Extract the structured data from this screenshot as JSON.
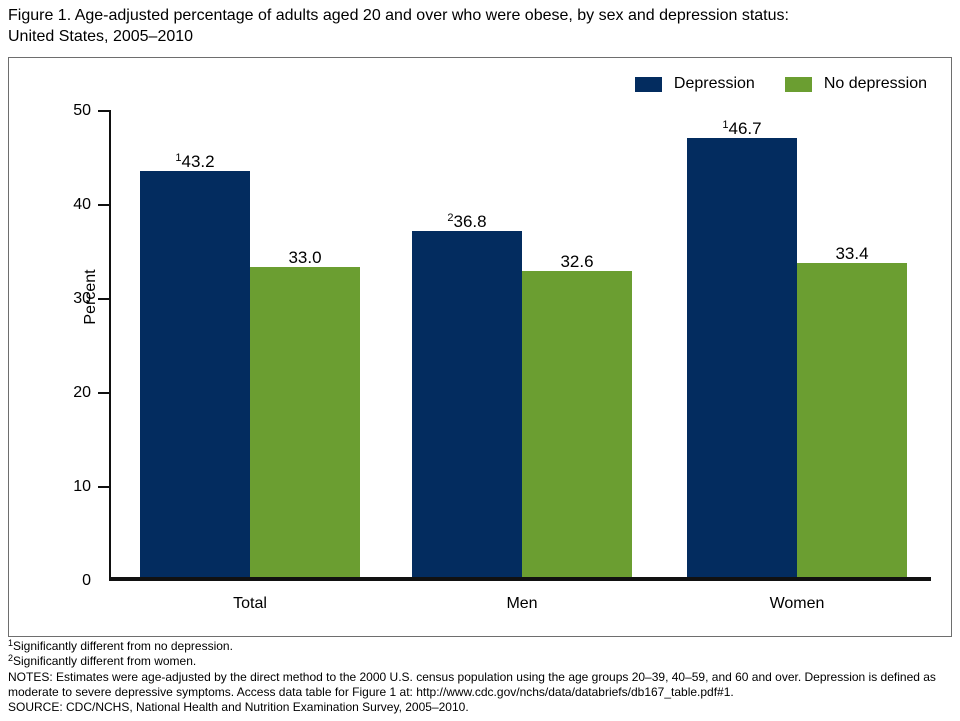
{
  "figure": {
    "title_line1": "Figure 1. Age-adjusted percentage of adults aged 20 and over who were obese, by sex and depression status:",
    "title_line2": "United States, 2005–2010"
  },
  "chart_data": {
    "type": "bar",
    "title": "Age-adjusted percentage of adults aged 20 and over who were obese, by sex and depression status: United States, 2005–2010",
    "categories": [
      "Total",
      "Men",
      "Women"
    ],
    "series": [
      {
        "name": "Depression",
        "color": "#032c5f",
        "points": [
          {
            "value": 43.2,
            "label": "43.2",
            "sup": "1"
          },
          {
            "value": 36.8,
            "label": "36.8",
            "sup": "2"
          },
          {
            "value": 46.7,
            "label": "46.7",
            "sup": "1"
          }
        ]
      },
      {
        "name": "No depression",
        "color": "#6b9e31",
        "points": [
          {
            "value": 33.0,
            "label": "33.0",
            "sup": ""
          },
          {
            "value": 32.6,
            "label": "32.6",
            "sup": ""
          },
          {
            "value": 33.4,
            "label": "33.4",
            "sup": ""
          }
        ]
      }
    ],
    "ylabel": "Percent",
    "ylim": [
      0,
      50
    ],
    "yticks": [
      0,
      10,
      20,
      30,
      40,
      50
    ],
    "legend_position": "top-right",
    "grid": false
  },
  "footnotes": {
    "fn1_sup": "1",
    "fn1_text": "Significantly different from no depression.",
    "fn2_sup": "2",
    "fn2_text": "Significantly different from women.",
    "notes": "NOTES: Estimates were age-adjusted by the direct method to the 2000 U.S. census population using the age groups 20–39, 40–59, and 60 and over. Depression is defined as moderate to severe depressive symptoms. Access data table for Figure 1 at: http://www.cdc.gov/nchs/data/databriefs/db167_table.pdf#1.",
    "source": "SOURCE: CDC/NCHS, National Health and Nutrition Examination Survey, 2005–2010."
  }
}
